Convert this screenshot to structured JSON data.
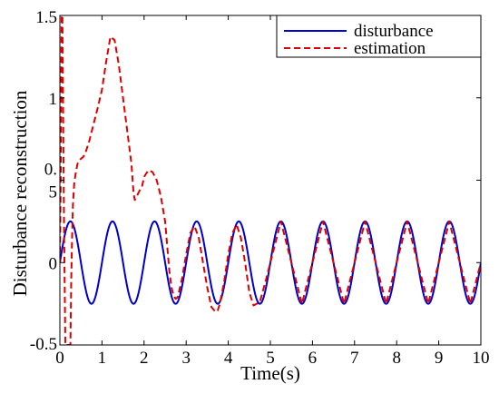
{
  "chart_data": {
    "type": "line",
    "title": "",
    "xlabel": "Time(s)",
    "ylabel": "Disturbance reconstruction",
    "xlim": [
      0,
      10
    ],
    "ylim": [
      -0.5,
      1.5
    ],
    "xticks": [
      "0",
      "1",
      "2",
      "3",
      "4",
      "5",
      "6",
      "7",
      "8",
      "9",
      "10"
    ],
    "yticks": [
      {
        "value": -0.5,
        "label": "-0.5"
      },
      {
        "value": 0,
        "label": "0"
      },
      {
        "value": 0.5,
        "label": "0.\n5"
      },
      {
        "value": 1,
        "label": "1"
      },
      {
        "value": 1.5,
        "label": "1.5"
      }
    ],
    "grid": false,
    "legend_position": "top-right",
    "series": [
      {
        "name": "disturbance",
        "color": "#0000cc",
        "style": "solid",
        "function": "0.25*sin(2*pi*t)",
        "x": [
          0,
          0.25,
          0.75,
          1.25,
          1.75,
          2.25,
          2.75,
          3.25,
          3.75,
          4.25,
          4.75,
          5.25,
          5.75,
          6.25,
          6.75,
          7.25,
          7.75,
          8.25,
          8.75,
          9.25,
          9.75,
          10
        ],
        "y": [
          0,
          0.25,
          -0.25,
          0.25,
          -0.25,
          0.25,
          -0.25,
          0.25,
          -0.25,
          0.25,
          -0.25,
          0.25,
          -0.25,
          0.25,
          -0.25,
          0.25,
          -0.25,
          0.25,
          -0.25,
          0.25,
          -0.25,
          0
        ]
      },
      {
        "name": "estimation",
        "color": "#dd0000",
        "style": "dashed",
        "x": [
          0.0,
          0.02,
          0.04,
          0.06,
          0.08,
          0.1,
          0.13,
          0.16,
          0.19,
          0.22,
          0.25,
          0.27,
          0.29,
          0.31,
          0.34,
          0.38,
          0.42,
          0.46,
          0.5,
          0.55,
          0.6,
          0.7,
          0.8,
          0.9,
          1.0,
          1.1,
          1.2,
          1.3,
          1.4,
          1.5,
          1.6,
          1.65,
          1.7,
          1.75,
          1.78,
          1.82,
          1.86,
          1.9,
          1.95,
          2.0,
          2.1,
          2.2,
          2.3,
          2.4,
          2.5,
          2.55,
          2.6,
          2.65,
          2.7,
          2.75,
          2.8,
          2.9,
          3.0,
          3.1,
          3.2,
          3.3,
          3.4,
          3.5,
          3.6,
          3.7,
          3.75,
          3.8,
          3.9,
          4.0,
          4.1,
          4.2,
          4.3,
          4.4,
          4.5,
          4.6,
          4.75,
          4.9,
          5.0,
          5.1,
          5.25,
          5.4,
          5.5,
          5.6,
          5.75,
          5.9,
          6.0,
          6.1,
          6.25,
          6.4,
          6.5,
          6.6,
          6.75,
          6.9,
          7.0,
          7.1,
          7.25,
          7.4,
          7.5,
          7.6,
          7.75,
          7.9,
          8.0,
          8.1,
          8.25,
          8.4,
          8.5,
          8.6,
          8.75,
          8.9,
          9.0,
          9.1,
          9.25,
          9.4,
          9.5,
          9.6,
          9.75,
          9.9,
          10.0
        ],
        "y": [
          0.0,
          0.5,
          1.5,
          1.5,
          0.8,
          0.2,
          -0.5,
          -0.5,
          -0.5,
          -0.5,
          -0.5,
          -0.1,
          0.15,
          0.35,
          0.48,
          0.55,
          0.6,
          0.62,
          0.63,
          0.64,
          0.66,
          0.74,
          0.84,
          0.94,
          1.05,
          1.22,
          1.37,
          1.35,
          1.2,
          1.0,
          0.8,
          0.7,
          0.6,
          0.42,
          0.38,
          0.4,
          0.42,
          0.44,
          0.46,
          0.52,
          0.56,
          0.55,
          0.5,
          0.4,
          0.25,
          0.1,
          -0.05,
          -0.15,
          -0.2,
          -0.22,
          -0.21,
          -0.1,
          0.05,
          0.18,
          0.22,
          0.15,
          0.0,
          -0.15,
          -0.27,
          -0.3,
          -0.29,
          -0.25,
          -0.12,
          0.05,
          0.18,
          0.23,
          0.15,
          0.0,
          -0.18,
          -0.26,
          -0.24,
          -0.1,
          0.0,
          0.1,
          0.25,
          0.1,
          0.0,
          -0.1,
          -0.25,
          -0.1,
          0.0,
          0.1,
          0.25,
          0.1,
          0.0,
          -0.1,
          -0.25,
          -0.1,
          0.0,
          0.1,
          0.25,
          0.1,
          0.0,
          -0.1,
          -0.25,
          -0.1,
          0.0,
          0.1,
          0.25,
          0.1,
          0.0,
          -0.1,
          -0.25,
          -0.1,
          0.0,
          0.1,
          0.25,
          0.1,
          0.0,
          -0.1,
          -0.25,
          -0.1,
          0.0
        ]
      }
    ]
  }
}
